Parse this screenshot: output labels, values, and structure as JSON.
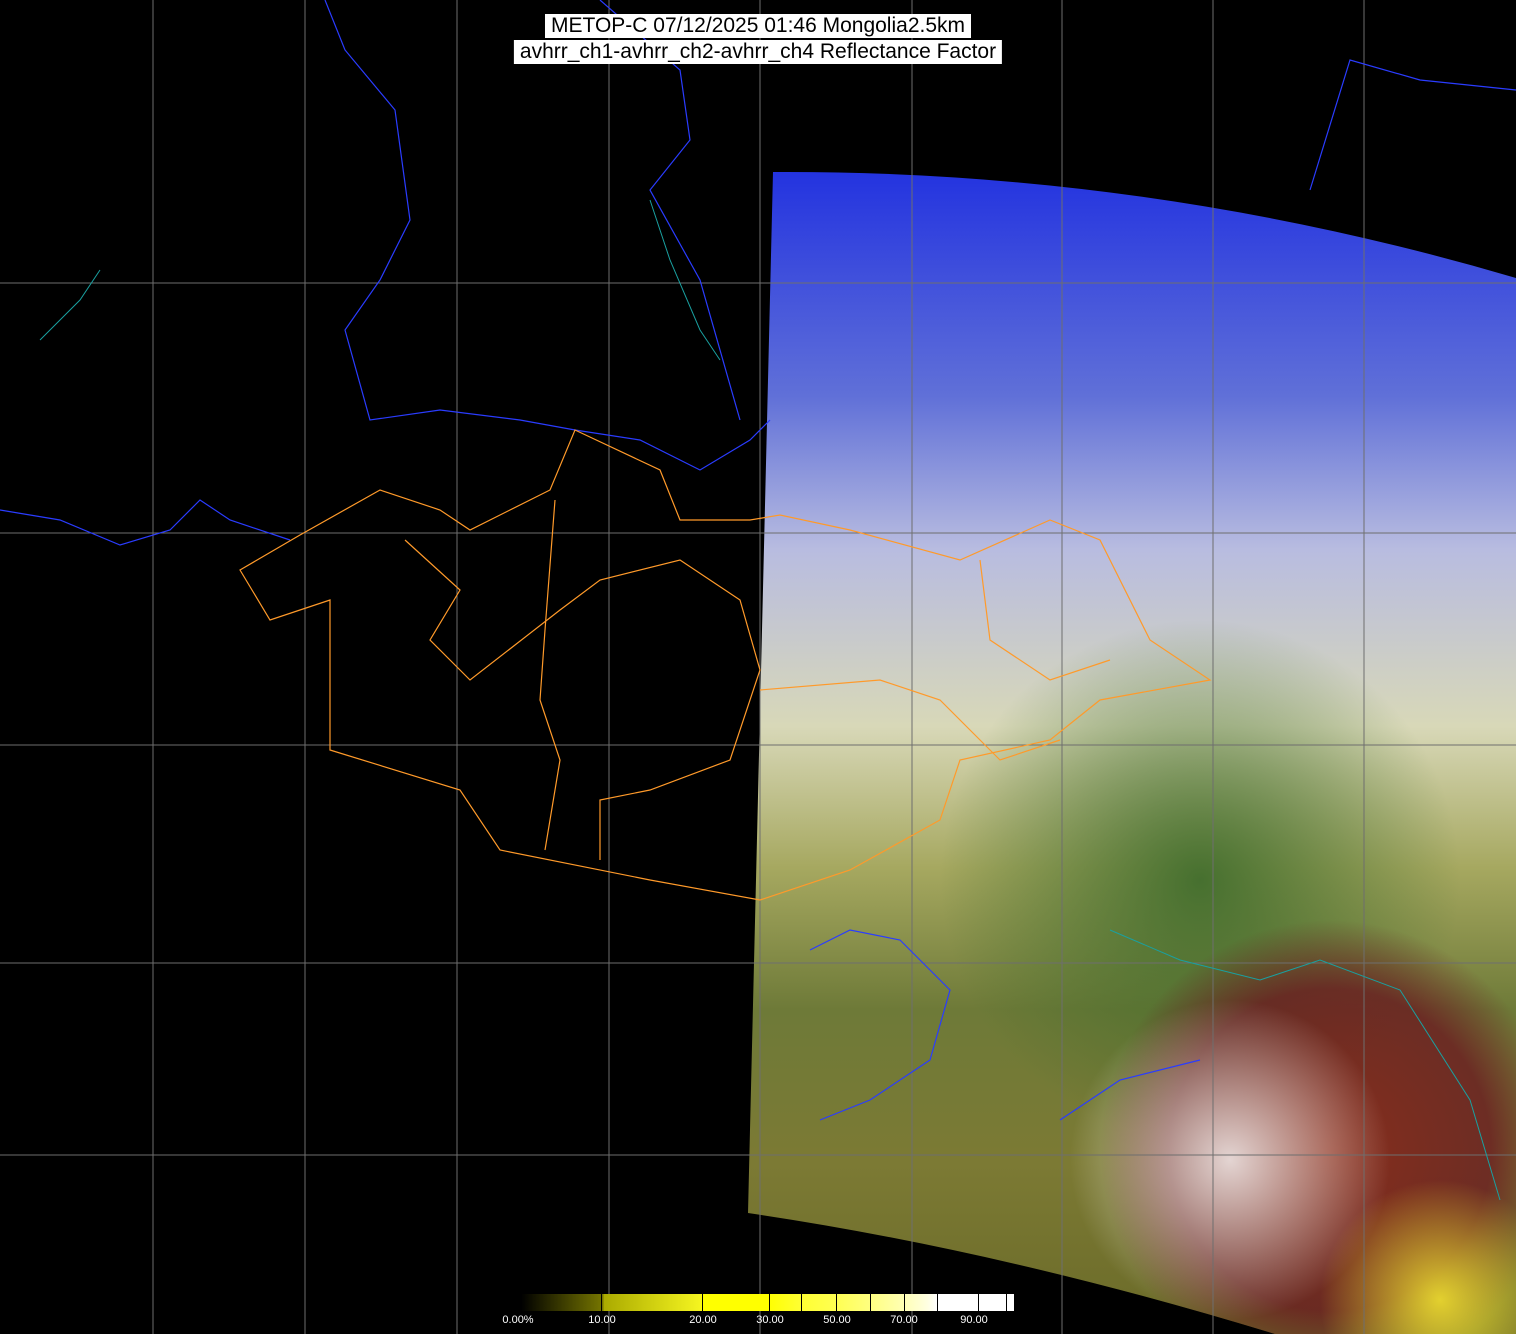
{
  "title": {
    "line1": "METOP-C 07/12/2025 01:46 Mongolia2.5km",
    "line2": "avhrr_ch1-avhrr_ch2-avhrr_ch4 Reflectance Factor"
  },
  "colorbar": {
    "labels": [
      "0.00%",
      "10.00",
      "20.00",
      "30.00",
      "50.00",
      "70.00",
      "90.00"
    ],
    "colors": [
      "#000000",
      "#777700",
      "#ffff00",
      "#ffffff"
    ]
  },
  "map": {
    "background": "#000000",
    "grid_color": "#6e6e6e",
    "border_color_country": "#2a3cff",
    "border_color_province": "#ff9a2a",
    "coast_color": "#1aa0a0"
  }
}
